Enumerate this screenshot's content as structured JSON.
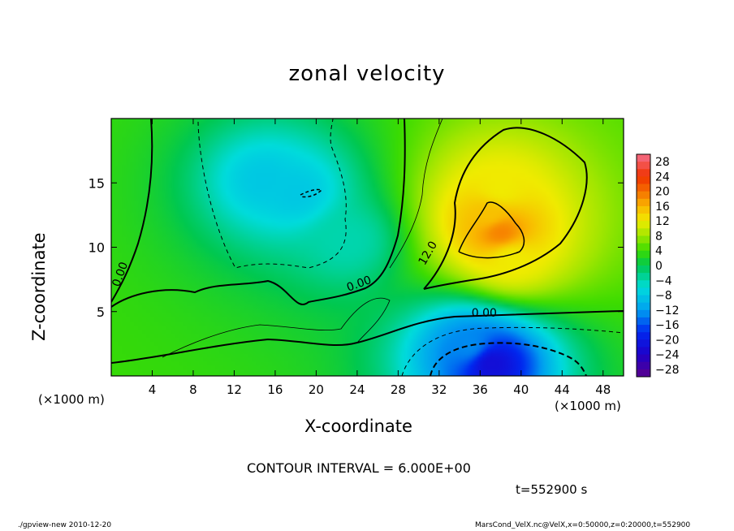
{
  "chart_data": {
    "type": "heatmap",
    "title": "zonal velocity",
    "xlabel": "X-coordinate",
    "ylabel": "Z-coordinate",
    "x_unit_label": "(×1000 m)",
    "y_unit_label": "(×1000 m)",
    "xlim": [
      0,
      50
    ],
    "ylim": [
      0,
      20
    ],
    "x_ticks": [
      "4",
      "8",
      "12",
      "16",
      "20",
      "24",
      "28",
      "32",
      "36",
      "40",
      "44",
      "48"
    ],
    "y_ticks": [
      "5",
      "10",
      "15"
    ],
    "colorbar_ticks": [
      "28",
      "24",
      "20",
      "16",
      "12",
      "8",
      "4",
      "0",
      "−4",
      "−8",
      "−12",
      "−16",
      "−20",
      "−24",
      "−28"
    ],
    "colorbar_range": [
      -30,
      30
    ],
    "contour_labels": [
      {
        "text": "0.00",
        "x": 1.2,
        "z": 7.8
      },
      {
        "text": "0.00",
        "x": 24.3,
        "z": 6.9
      },
      {
        "text": "0.00",
        "x": 36.4,
        "z": 4.6
      },
      {
        "text": "12.0",
        "x": 31.2,
        "z": 9.4
      }
    ],
    "features": [
      {
        "x": 38,
        "z": 11.2,
        "value": 19
      },
      {
        "x": 37,
        "z": 12.5,
        "value": 15
      },
      {
        "x": 38,
        "z": 14.5,
        "value": 12
      },
      {
        "x": 39,
        "z": 9.2,
        "value": 12
      },
      {
        "x": 37,
        "z": 1,
        "value": -22
      },
      {
        "x": 35,
        "z": 2.3,
        "value": -13
      },
      {
        "x": 18,
        "z": 14.3,
        "value": -8
      },
      {
        "x": 15,
        "z": 15.2,
        "value": -8
      },
      {
        "x": 23,
        "z": 10.5,
        "value": -4
      }
    ],
    "contour_interval": "CONTOUR INTERVAL = 6.000E+00",
    "time": "t=552900 s"
  },
  "footer": {
    "left": "./gpview-new  2010-12-20",
    "right": "MarsCond_VelX.nc@VelX,x=0:50000,z=0:20000,t=552900"
  }
}
